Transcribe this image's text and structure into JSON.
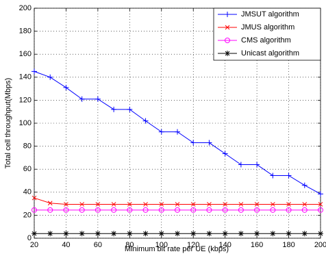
{
  "chart_data": {
    "type": "line",
    "xlabel": "Minimum bit rate per UE (kbps)",
    "ylabel": "Total cell throughput(Mbps)",
    "x": [
      20,
      30,
      40,
      50,
      60,
      70,
      80,
      90,
      100,
      110,
      120,
      130,
      140,
      150,
      160,
      170,
      180,
      190,
      200
    ],
    "series": [
      {
        "name": "JMSUT algorithm",
        "color": "#0000ff",
        "marker": "plus",
        "values": [
          145,
          140,
          131,
          121,
          121,
          112,
          112,
          102,
          92.5,
          92.5,
          83,
          83,
          73.5,
          64,
          64,
          54.5,
          54.5,
          46,
          38.5
        ]
      },
      {
        "name": "JMUS algorithm",
        "color": "#ff0000",
        "marker": "x",
        "values": [
          35,
          30.5,
          29.5,
          29.5,
          29.5,
          29.5,
          29.5,
          29.5,
          29.5,
          29.5,
          29.5,
          29.5,
          29.5,
          29.5,
          29.5,
          29.5,
          29.5,
          29.5,
          29.5
        ]
      },
      {
        "name": "CMS algorithm",
        "color": "#ff00ff",
        "marker": "circle",
        "values": [
          24.5,
          24.5,
          24.5,
          24.5,
          24.5,
          24.5,
          24.5,
          24.5,
          24.5,
          24.5,
          24.5,
          24.5,
          24.5,
          24.5,
          24.5,
          24.5,
          24.5,
          24.5,
          24.5
        ]
      },
      {
        "name": "Unicast algorithm",
        "color": "#000000",
        "marker": "star",
        "values": [
          4,
          4,
          4,
          4,
          4,
          4,
          4,
          4,
          4,
          4,
          4,
          4,
          4,
          4,
          4,
          4,
          4,
          4,
          4
        ]
      }
    ],
    "xlim": [
      20,
      200
    ],
    "xticks": [
      20,
      40,
      60,
      80,
      100,
      120,
      140,
      160,
      180,
      200
    ],
    "ylim": [
      0,
      200
    ],
    "yticks": [
      0,
      20,
      40,
      60,
      80,
      100,
      120,
      140,
      160,
      180,
      200
    ],
    "grid": true,
    "legend": "northeast"
  }
}
